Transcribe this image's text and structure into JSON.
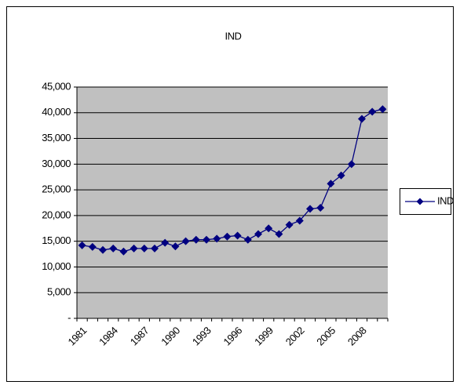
{
  "chart_data": {
    "type": "line",
    "title": "IND",
    "categories": [
      "1981",
      null,
      null,
      "1984",
      null,
      null,
      "1987",
      null,
      null,
      "1990",
      null,
      null,
      "1993",
      null,
      null,
      "1996",
      null,
      null,
      "1999",
      null,
      null,
      "2002",
      null,
      null,
      "2005",
      null,
      null,
      "2008",
      null,
      null
    ],
    "series": [
      {
        "name": "IND",
        "color": "#000080",
        "values": [
          14200,
          13900,
          13300,
          13600,
          13000,
          13600,
          13600,
          13600,
          14700,
          14000,
          15000,
          15300,
          15300,
          15500,
          15900,
          16100,
          15300,
          16400,
          17500,
          16400,
          18200,
          19000,
          21300,
          21500,
          26200,
          27800,
          30000,
          38800,
          40200,
          40700
        ]
      }
    ],
    "ylim": [
      0,
      45000
    ],
    "yticks": [
      {
        "value": 0,
        "label": "-"
      },
      {
        "value": 5000,
        "label": "5,000"
      },
      {
        "value": 10000,
        "label": "10,000"
      },
      {
        "value": 15000,
        "label": "15,000"
      },
      {
        "value": 20000,
        "label": "20,000"
      },
      {
        "value": 25000,
        "label": "25,000"
      },
      {
        "value": 30000,
        "label": "30,000"
      },
      {
        "value": 35000,
        "label": "35,000"
      },
      {
        "value": 40000,
        "label": "40,000"
      },
      {
        "value": 45000,
        "label": "45,000"
      }
    ],
    "grid": true,
    "legend": "right",
    "plot_background": "#c0c0c0"
  }
}
